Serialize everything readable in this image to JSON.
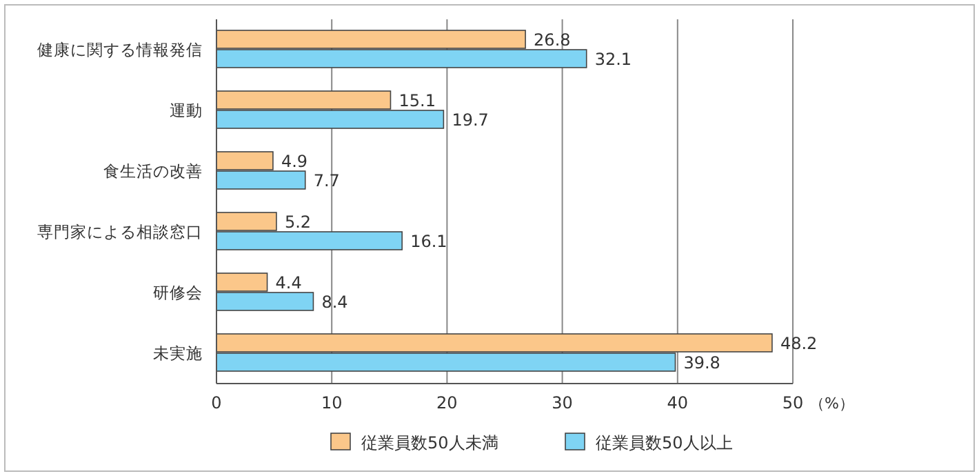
{
  "chart_data": {
    "type": "bar",
    "orientation": "horizontal",
    "xlabel": "（%）",
    "categories": [
      "健康に関する情報発信",
      "運動",
      "食生活の改善",
      "専門家による相談窓口",
      "研修会",
      "未実施"
    ],
    "series": [
      {
        "name": "従業員数50人未満",
        "color": "#fbc78a",
        "values": [
          26.8,
          15.1,
          4.9,
          5.2,
          4.4,
          48.2
        ]
      },
      {
        "name": "従業員数50人以上",
        "color": "#7fd4f4",
        "values": [
          32.1,
          19.7,
          7.7,
          16.1,
          8.4,
          39.8
        ]
      }
    ],
    "xlim": [
      0,
      50
    ],
    "xticks": [
      0,
      10,
      20,
      30,
      40,
      50
    ],
    "grid": "x",
    "legend": "bottom",
    "data_labels": true
  }
}
